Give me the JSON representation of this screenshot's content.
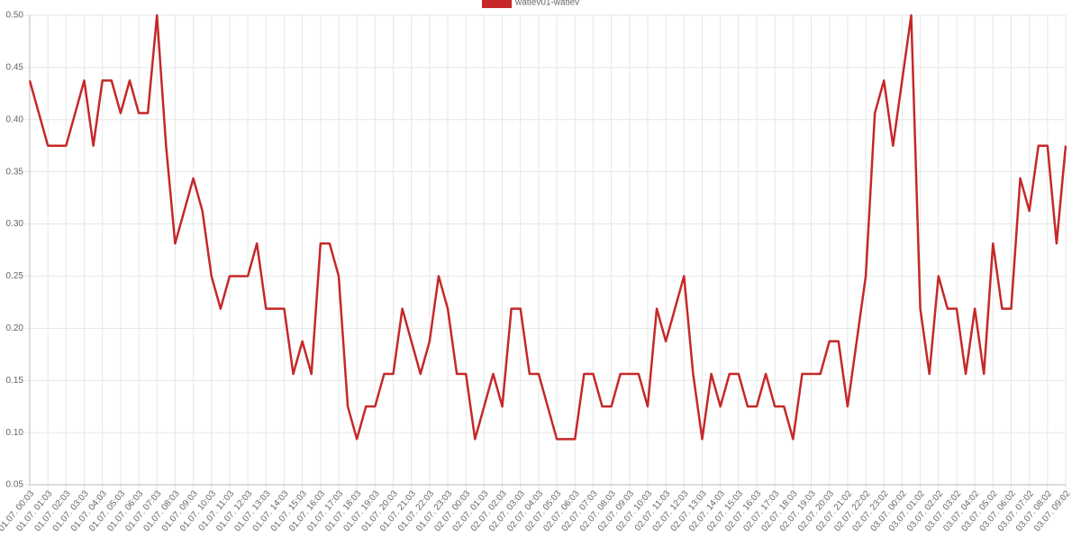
{
  "chart_data": {
    "type": "line",
    "categories": [
      "01.07. 00:03",
      null,
      "01.07. 01:03",
      null,
      "01.07. 02:03",
      null,
      "01.07. 03:03",
      null,
      "01.07. 04:03",
      null,
      "01.07. 05:03",
      null,
      "01.07. 06:03",
      null,
      "01.07. 07:03",
      null,
      "01.07. 08:03",
      null,
      "01.07. 09:03",
      null,
      "01.07. 10:03",
      null,
      "01.07. 11:03",
      null,
      "01.07. 12:03",
      null,
      "01.07. 13:03",
      null,
      "01.07. 14:03",
      null,
      "01.07. 15:03",
      null,
      "01.07. 16:03",
      null,
      "01.07. 17:03",
      null,
      "01.07. 18:03",
      null,
      "01.07. 19:03",
      null,
      "01.07. 20:03",
      null,
      "01.07. 21:03",
      null,
      "01.07. 22:03",
      null,
      "01.07. 23:03",
      null,
      "02.07. 00:03",
      null,
      "02.07. 01:03",
      null,
      "02.07. 02:03",
      null,
      "02.07. 03:03",
      null,
      "02.07. 04:03",
      null,
      "02.07. 05:03",
      null,
      "02.07. 06:03",
      null,
      "02.07. 07:03",
      null,
      "02.07. 08:03",
      null,
      "02.07. 09:03",
      null,
      "02.07. 10:03",
      null,
      "02.07. 11:03",
      null,
      "02.07. 12:03",
      null,
      "02.07. 13:03",
      null,
      "02.07. 14:03",
      null,
      "02.07. 15:03",
      null,
      "02.07. 16:03",
      null,
      "02.07. 17:03",
      null,
      "02.07. 18:03",
      null,
      "02.07. 19:03",
      null,
      "02.07. 20:03",
      null,
      "02.07. 21:02",
      null,
      "02.07. 22:02",
      null,
      "02.07. 23:02",
      null,
      "03.07. 00:02",
      null,
      "03.07. 01:02",
      null,
      "03.07. 02:02",
      null,
      "03.07. 03:02",
      null,
      "03.07. 04:02",
      null,
      "03.07. 05:02",
      null,
      "03.07. 06:02",
      null,
      "03.07. 07:02",
      null,
      "03.07. 08:02",
      null,
      "03.07. 09:02"
    ],
    "series": [
      {
        "name": "watlev01-watlev",
        "color": "#c62828",
        "values": [
          0.4375,
          0.40625,
          0.375,
          0.375,
          0.375,
          0.40625,
          0.4375,
          0.375,
          0.4375,
          0.4375,
          0.40625,
          0.4375,
          0.40625,
          0.40625,
          0.5,
          0.375,
          0.28125,
          0.3125,
          0.34375,
          0.3125,
          0.25,
          0.21875,
          0.25,
          0.25,
          0.25,
          0.28125,
          0.21875,
          0.21875,
          0.21875,
          0.15625,
          0.1875,
          0.15625,
          0.28125,
          0.28125,
          0.25,
          0.125,
          0.09375,
          0.125,
          0.125,
          0.15625,
          0.15625,
          0.21875,
          0.1875,
          0.15625,
          0.1875,
          0.25,
          0.21875,
          0.15625,
          0.15625,
          0.09375,
          0.125,
          0.15625,
          0.125,
          0.21875,
          0.21875,
          0.15625,
          0.15625,
          0.125,
          0.09375,
          0.09375,
          0.09375,
          0.15625,
          0.15625,
          0.125,
          0.125,
          0.15625,
          0.15625,
          0.15625,
          0.125,
          0.21875,
          0.1875,
          0.21875,
          0.25,
          0.15625,
          0.09375,
          0.15625,
          0.125,
          0.15625,
          0.15625,
          0.125,
          0.125,
          0.15625,
          0.125,
          0.125,
          0.09375,
          0.15625,
          0.15625,
          0.15625,
          0.1875,
          0.1875,
          0.125,
          0.1875,
          0.25,
          0.40625,
          0.4375,
          0.375,
          0.4375,
          0.5,
          0.21875,
          0.15625,
          0.25,
          0.21875,
          0.21875,
          0.15625,
          0.21875,
          0.15625,
          0.28125,
          0.21875,
          0.21875,
          0.34375,
          0.3125,
          0.375,
          0.375,
          0.28125,
          0.375
        ]
      }
    ],
    "ylim": [
      0.05,
      0.5
    ],
    "yticks": [
      0.05,
      {
        "value": 0.1,
        "label": "0.10"
      },
      0.15,
      {
        "value": 0.2,
        "label": "0.20"
      },
      0.25,
      {
        "value": 0.3,
        "label": "0.30"
      },
      0.35,
      {
        "value": 0.4,
        "label": "0.40"
      },
      0.45,
      {
        "value": 0.5,
        "label": "0.50"
      }
    ],
    "grid": true,
    "legend": "top"
  }
}
